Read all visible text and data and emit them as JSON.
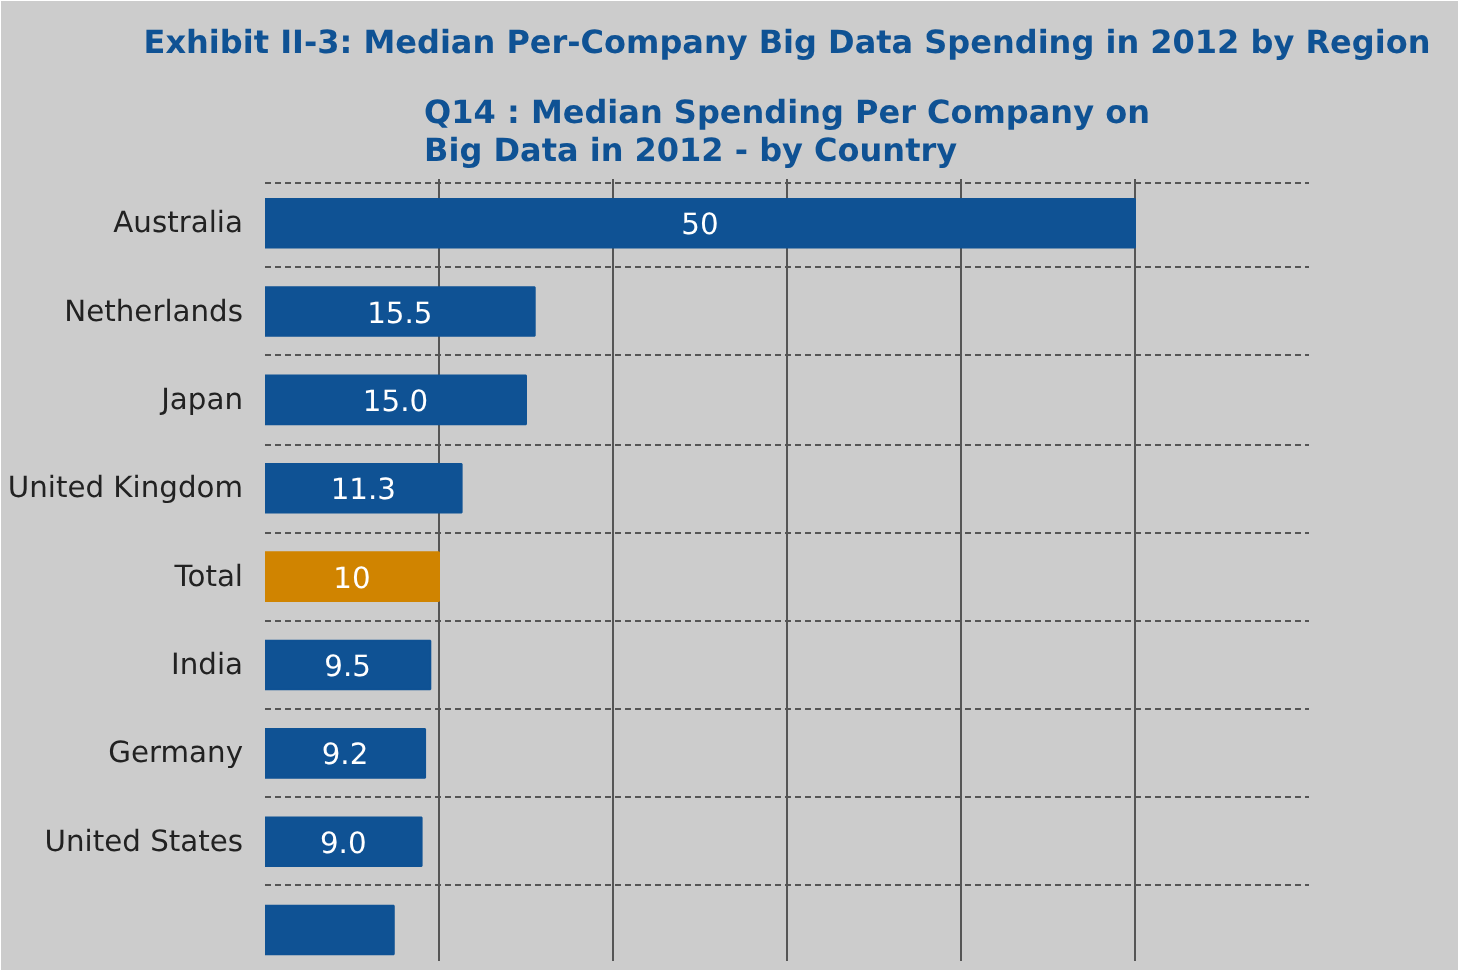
{
  "chart_data": {
    "type": "bar",
    "orientation": "horizontal",
    "title": "Exhibit II-3: Median Per-Company Big Data Spending in 2012 by Region",
    "subtitle": "Q14 : Median Spending Per Company on\nBig Data in 2012 - by Country",
    "categories": [
      "Australia",
      "Netherlands",
      "Japan",
      "United Kingdom",
      "Total",
      "India",
      "Germany",
      "United States",
      null
    ],
    "values": [
      50,
      15.5,
      15.0,
      11.3,
      10,
      9.5,
      9.2,
      9.0,
      7.4
    ],
    "value_labels": [
      "50",
      "15.5",
      "15.0",
      "11.3",
      "10",
      "9.5",
      "9.2",
      "9.0",
      null
    ],
    "colors": [
      "#0f5294",
      "#0f5294",
      "#0f5294",
      "#0f5294",
      "#d08400",
      "#0f5294",
      "#0f5294",
      "#0f5294",
      "#0f5294"
    ],
    "xlim": [
      0,
      60
    ],
    "xticks": [
      {
        "value": 0,
        "label": null
      },
      {
        "value": 10,
        "label": null
      },
      {
        "value": 20,
        "label": null
      },
      {
        "value": 30,
        "label": null
      },
      {
        "value": 40,
        "label": null
      },
      {
        "value": 50,
        "label": null
      },
      {
        "value": 60,
        "label": null
      }
    ],
    "tick_labels": "y",
    "grid": true
  }
}
